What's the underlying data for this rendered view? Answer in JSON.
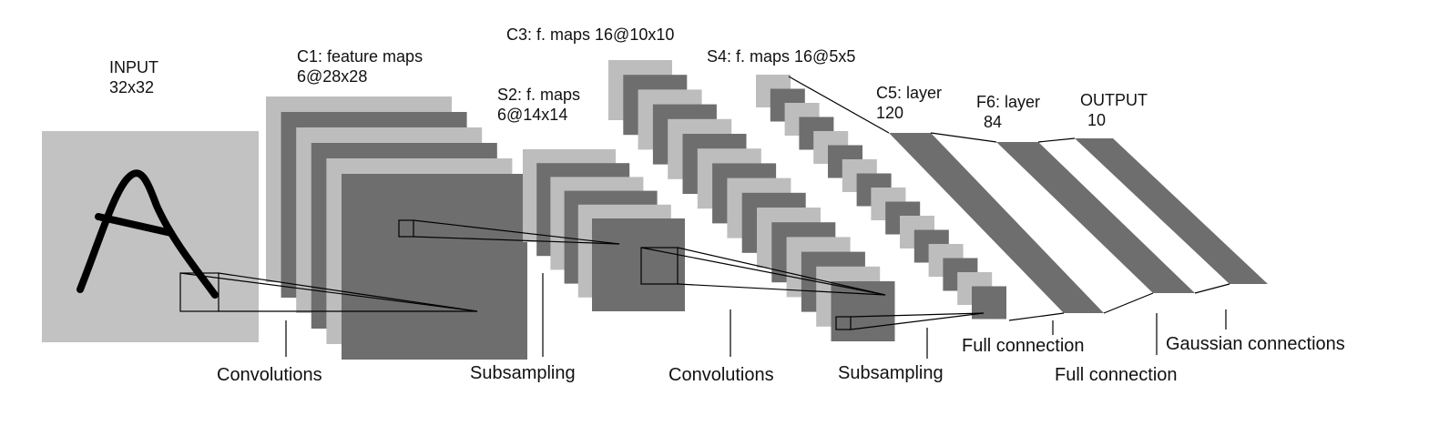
{
  "colors": {
    "light_map": "#bdbdbd",
    "dark_map": "#6e6e6e",
    "input_bg": "#c2c2c2",
    "stroke": "#000000"
  },
  "input_glyph": "A",
  "labels": {
    "input": {
      "line1": "INPUT",
      "line2": "32x32"
    },
    "c1": {
      "line1": "C1: feature maps",
      "line2": "6@28x28"
    },
    "s2": {
      "line1": "S2: f. maps",
      "line2": "6@14x14"
    },
    "c3": {
      "line1": "C3: f. maps 16@10x10"
    },
    "s4": {
      "line1": "S4: f. maps 16@5x5"
    },
    "c5": {
      "line1": "C5: layer",
      "line2": "120"
    },
    "f6": {
      "line1": "F6: layer",
      "line2": "84"
    },
    "output": {
      "line1": "OUTPUT",
      "line2": "10"
    }
  },
  "operations": {
    "conv1": "Convolutions",
    "sub1": "Subsampling",
    "conv2": "Convolutions",
    "sub2": "Subsampling",
    "full1": "Full connection",
    "full2": "Full connection",
    "gauss": "Gaussian connections"
  }
}
